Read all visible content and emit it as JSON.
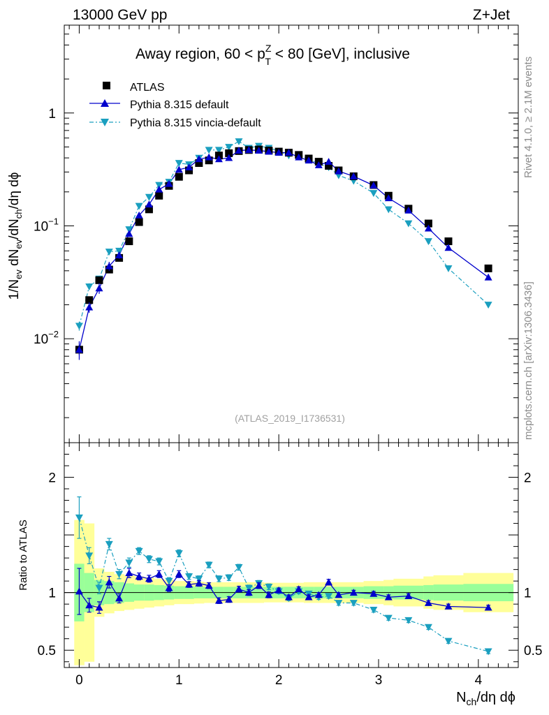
{
  "header": {
    "left": "13000 GeV pp",
    "right": "Z+Jet"
  },
  "side_labels": {
    "rivet": "Rivet 4.1.0, ≥ 2.1M events",
    "mcplots": "mcplots.cern.ch [arXiv:1306.3436]"
  },
  "colors": {
    "atlas": "#000000",
    "pythia_default": "#0000cc",
    "pythia_vincia": "#1a9fbf",
    "band_inner": "#99ff99",
    "band_outer": "#ffff99"
  },
  "chart_data": [
    {
      "type": "scatter",
      "title_text": "Away region, 60 < p",
      "title_sup": "Z",
      "title_sub": "T",
      "title_tail": " < 80 [GeV], inclusive",
      "ylabel": "1/N_ev dN_ev/dN_ch/dη dϕ",
      "yscale": "log",
      "ylim": [
        0.0012,
        6
      ],
      "xlim": [
        -0.15,
        4.4
      ],
      "yticks": [
        {
          "v": 0.01,
          "base": "10",
          "exp": "−2"
        },
        {
          "v": 0.1,
          "base": "10",
          "exp": "−1"
        },
        {
          "v": 1,
          "base": "1",
          "exp": ""
        }
      ],
      "watermark": "(ATLAS_2019_I1736531)",
      "legend_position": "top-left",
      "legend": [
        "ATLAS",
        "Pythia 8.315 default",
        "Pythia 8.315 vincia-default"
      ],
      "x": [
        0.0,
        0.1,
        0.2,
        0.3,
        0.4,
        0.5,
        0.6,
        0.7,
        0.8,
        0.9,
        1.0,
        1.1,
        1.2,
        1.3,
        1.4,
        1.5,
        1.6,
        1.7,
        1.8,
        1.9,
        2.0,
        2.1,
        2.2,
        2.3,
        2.4,
        2.5,
        2.6,
        2.75,
        2.95,
        3.1,
        3.3,
        3.5,
        3.7,
        4.1
      ],
      "series": [
        {
          "name": "ATLAS",
          "marker": "square",
          "values": [
            0.008,
            0.022,
            0.033,
            0.041,
            0.052,
            0.073,
            0.108,
            0.14,
            0.185,
            0.226,
            0.272,
            0.31,
            0.36,
            0.38,
            0.42,
            0.44,
            0.46,
            0.47,
            0.475,
            0.465,
            0.455,
            0.445,
            0.425,
            0.395,
            0.37,
            0.34,
            0.31,
            0.275,
            0.23,
            0.185,
            0.142,
            0.105,
            0.073,
            0.042
          ],
          "err_low": [
            0.0072,
            0.0205,
            0.031,
            0.0385,
            0.05,
            0.07,
            0.104,
            0.135,
            0.178,
            0.218,
            0.264,
            0.302,
            0.352,
            0.371,
            0.41,
            0.43,
            0.45,
            0.46,
            0.465,
            0.455,
            0.445,
            0.435,
            0.415,
            0.385,
            0.36,
            0.33,
            0.3,
            0.267,
            0.223,
            0.179,
            0.137,
            0.101,
            0.07,
            0.04
          ],
          "err_high": [
            0.0088,
            0.0235,
            0.035,
            0.0435,
            0.054,
            0.076,
            0.112,
            0.145,
            0.192,
            0.234,
            0.28,
            0.318,
            0.368,
            0.389,
            0.43,
            0.45,
            0.47,
            0.48,
            0.485,
            0.475,
            0.465,
            0.455,
            0.435,
            0.405,
            0.38,
            0.35,
            0.32,
            0.283,
            0.237,
            0.191,
            0.147,
            0.109,
            0.076,
            0.044
          ]
        },
        {
          "name": "Pythia 8.315 default",
          "marker": "triangle-up",
          "values": [
            0.008,
            0.019,
            0.028,
            0.044,
            0.055,
            0.085,
            0.124,
            0.155,
            0.21,
            0.236,
            0.315,
            0.33,
            0.39,
            0.405,
            0.39,
            0.4,
            0.465,
            0.47,
            0.465,
            0.455,
            0.445,
            0.445,
            0.405,
            0.38,
            0.345,
            0.37,
            0.305,
            0.275,
            0.228,
            0.176,
            0.137,
            0.095,
            0.064,
            0.035
          ],
          "err_low": [
            0.0065,
            0.017,
            0.025,
            0.04,
            0.051,
            0.081,
            0.12,
            0.15,
            0.204,
            0.23,
            0.308,
            0.323,
            0.382,
            0.397,
            0.382,
            0.392,
            0.457,
            0.462,
            0.457,
            0.447,
            0.437,
            0.437,
            0.397,
            0.372,
            0.338,
            0.362,
            0.298,
            0.27,
            0.224,
            0.173,
            0.134,
            0.093,
            0.062,
            0.034
          ],
          "err_high": [
            0.0095,
            0.021,
            0.031,
            0.048,
            0.059,
            0.089,
            0.128,
            0.16,
            0.216,
            0.242,
            0.322,
            0.337,
            0.398,
            0.413,
            0.398,
            0.408,
            0.473,
            0.478,
            0.473,
            0.463,
            0.453,
            0.453,
            0.413,
            0.388,
            0.352,
            0.378,
            0.312,
            0.28,
            0.232,
            0.179,
            0.14,
            0.097,
            0.066,
            0.036
          ]
        },
        {
          "name": "Pythia 8.315 vincia-default",
          "marker": "triangle-down",
          "values": [
            0.013,
            0.029,
            0.034,
            0.059,
            0.06,
            0.093,
            0.15,
            0.18,
            0.23,
            0.245,
            0.36,
            0.35,
            0.4,
            0.47,
            0.47,
            0.5,
            0.56,
            0.49,
            0.51,
            0.49,
            0.46,
            0.42,
            0.43,
            0.39,
            0.355,
            0.33,
            0.28,
            0.25,
            0.195,
            0.14,
            0.105,
            0.073,
            0.042,
            0.02
          ],
          "err_low": [
            0.0118,
            0.027,
            0.032,
            0.056,
            0.057,
            0.089,
            0.145,
            0.175,
            0.224,
            0.239,
            0.352,
            0.342,
            0.392,
            0.461,
            0.461,
            0.491,
            0.55,
            0.481,
            0.501,
            0.481,
            0.451,
            0.412,
            0.422,
            0.382,
            0.348,
            0.323,
            0.274,
            0.245,
            0.191,
            0.137,
            0.103,
            0.071,
            0.041,
            0.0195
          ],
          "err_high": [
            0.0142,
            0.031,
            0.036,
            0.062,
            0.063,
            0.097,
            0.155,
            0.185,
            0.236,
            0.251,
            0.368,
            0.358,
            0.408,
            0.479,
            0.479,
            0.509,
            0.57,
            0.499,
            0.519,
            0.499,
            0.469,
            0.428,
            0.438,
            0.398,
            0.362,
            0.337,
            0.286,
            0.255,
            0.199,
            0.143,
            0.107,
            0.075,
            0.043,
            0.0205
          ]
        }
      ]
    },
    {
      "type": "scatter",
      "ylabel": "Ratio to ATLAS",
      "xlabel_main": "N",
      "xlabel_sub": "ch",
      "xlabel_tail": "/dη dϕ",
      "ylim": [
        0.35,
        2.3
      ],
      "xlim": [
        -0.15,
        4.4
      ],
      "xticks": [
        0,
        1,
        2,
        3,
        4
      ],
      "yticks": [
        0.5,
        1,
        2
      ],
      "reference_line": 1,
      "x_edges": [
        -0.05,
        0.05,
        0.15,
        0.25,
        0.35,
        0.45,
        0.55,
        0.65,
        0.75,
        0.85,
        0.95,
        1.05,
        1.15,
        1.25,
        1.35,
        1.45,
        1.55,
        1.65,
        1.75,
        1.85,
        1.95,
        2.05,
        2.15,
        2.25,
        2.35,
        2.45,
        2.55,
        2.65,
        2.85,
        3.05,
        3.15,
        3.45,
        3.55,
        3.85,
        4.35
      ],
      "band_inner_half": [
        0.25,
        0.17,
        0.11,
        0.1,
        0.09,
        0.08,
        0.07,
        0.07,
        0.065,
        0.06,
        0.055,
        0.055,
        0.05,
        0.05,
        0.05,
        0.05,
        0.05,
        0.05,
        0.05,
        0.05,
        0.05,
        0.05,
        0.05,
        0.05,
        0.05,
        0.05,
        0.05,
        0.05,
        0.055,
        0.055,
        0.06,
        0.065,
        0.07,
        0.075
      ],
      "band_outer_half": [
        0.63,
        0.6,
        0.21,
        0.18,
        0.16,
        0.15,
        0.14,
        0.13,
        0.12,
        0.11,
        0.1,
        0.1,
        0.095,
        0.09,
        0.09,
        0.09,
        0.09,
        0.09,
        0.09,
        0.085,
        0.085,
        0.085,
        0.085,
        0.09,
        0.09,
        0.09,
        0.09,
        0.09,
        0.1,
        0.11,
        0.12,
        0.14,
        0.15,
        0.17
      ],
      "x": [
        0.0,
        0.1,
        0.2,
        0.3,
        0.4,
        0.5,
        0.6,
        0.7,
        0.8,
        0.9,
        1.0,
        1.1,
        1.2,
        1.3,
        1.4,
        1.5,
        1.6,
        1.7,
        1.8,
        1.9,
        2.0,
        2.1,
        2.2,
        2.3,
        2.4,
        2.5,
        2.6,
        2.75,
        2.95,
        3.1,
        3.3,
        3.5,
        3.7,
        4.1
      ],
      "series": [
        {
          "name": "Pythia 8.315 default",
          "marker": "triangle-up",
          "values": [
            1.01,
            0.89,
            0.87,
            1.09,
            0.95,
            1.17,
            1.14,
            1.12,
            1.16,
            1.04,
            1.16,
            1.07,
            1.08,
            1.06,
            0.93,
            0.94,
            1.03,
            1.0,
            1.06,
            0.98,
            1.02,
            0.96,
            1.03,
            0.96,
            0.98,
            1.09,
            0.98,
            1.0,
            0.99,
            0.96,
            0.97,
            0.91,
            0.88,
            0.87
          ],
          "err": [
            0.2,
            0.06,
            0.05,
            0.05,
            0.04,
            0.04,
            0.03,
            0.03,
            0.03,
            0.03,
            0.03,
            0.025,
            0.025,
            0.025,
            0.025,
            0.025,
            0.025,
            0.025,
            0.025,
            0.025,
            0.02,
            0.02,
            0.02,
            0.02,
            0.02,
            0.025,
            0.02,
            0.02,
            0.02,
            0.02,
            0.02,
            0.02,
            0.02,
            0.02
          ]
        },
        {
          "name": "Pythia 8.315 vincia-default",
          "marker": "triangle-down",
          "values": [
            1.65,
            1.32,
            1.04,
            1.42,
            1.16,
            1.26,
            1.36,
            1.29,
            1.27,
            1.1,
            1.34,
            1.14,
            1.12,
            1.24,
            1.12,
            1.13,
            1.22,
            1.04,
            1.08,
            1.05,
            1.01,
            0.95,
            1.01,
            0.99,
            0.96,
            0.97,
            0.91,
            0.91,
            0.85,
            0.78,
            0.76,
            0.7,
            0.58,
            0.49
          ],
          "err": [
            0.18,
            0.07,
            0.05,
            0.05,
            0.04,
            0.04,
            0.03,
            0.03,
            0.03,
            0.03,
            0.03,
            0.025,
            0.025,
            0.025,
            0.025,
            0.025,
            0.025,
            0.025,
            0.025,
            0.025,
            0.02,
            0.02,
            0.02,
            0.02,
            0.02,
            0.02,
            0.02,
            0.02,
            0.02,
            0.02,
            0.02,
            0.02,
            0.02,
            0.02
          ]
        }
      ]
    }
  ]
}
